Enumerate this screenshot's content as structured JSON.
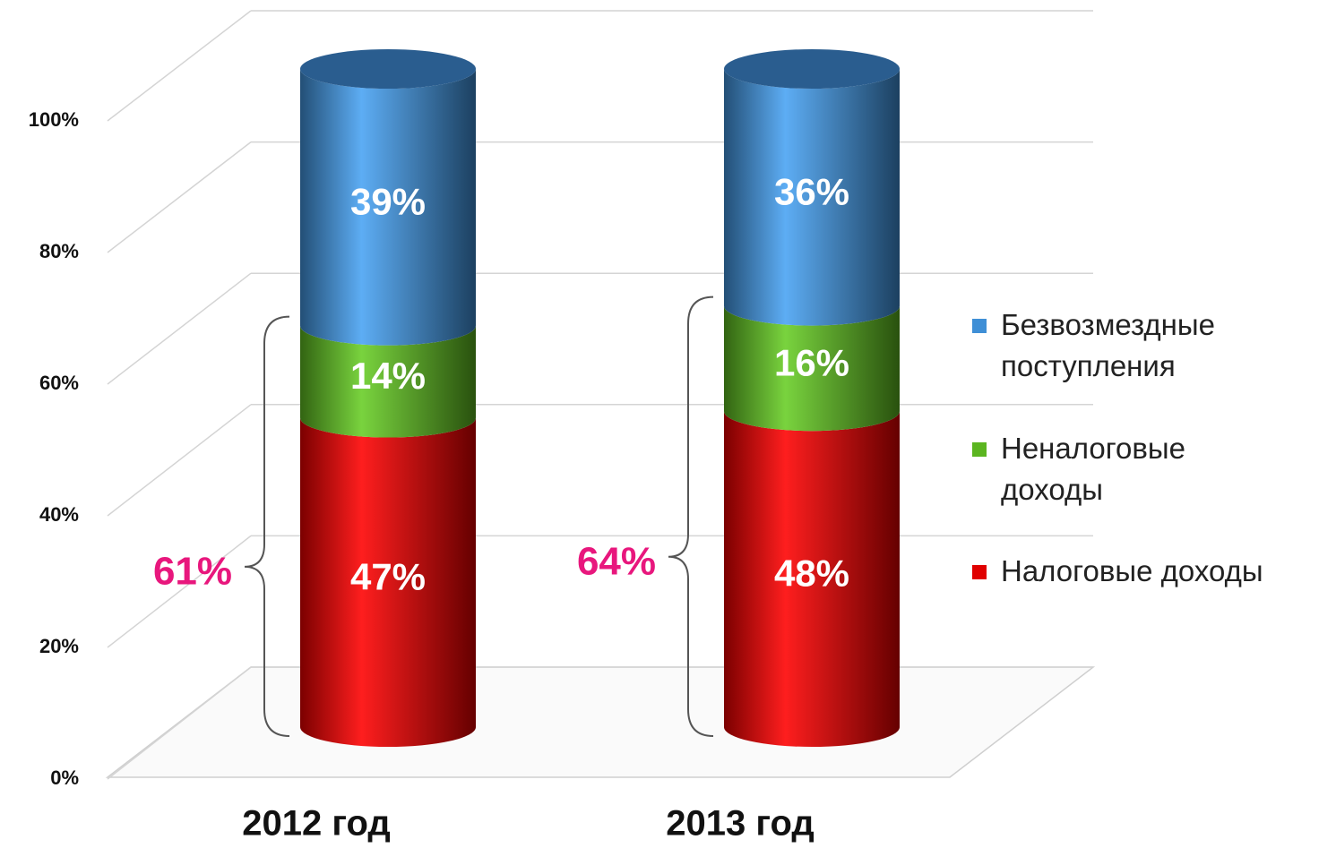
{
  "chart_data": {
    "type": "bar",
    "stacked": true,
    "categories": [
      "2012 год",
      "2013 год"
    ],
    "series": [
      {
        "name": "Налоговые доходы",
        "color": "#e00000",
        "values": [
          47,
          48
        ],
        "value_labels": [
          "47%",
          "48%"
        ]
      },
      {
        "name": "Неналоговые доходы",
        "color": "#5bb520",
        "values": [
          14,
          16
        ],
        "value_labels": [
          "14%",
          "16%"
        ]
      },
      {
        "name": "Безвозмездные поступления",
        "color": "#3f8fd6",
        "values": [
          39,
          36
        ],
        "value_labels": [
          "39%",
          "36%"
        ]
      }
    ],
    "ylim": [
      0,
      100
    ],
    "yticks": [
      {
        "value": 0,
        "label": "0%"
      },
      {
        "value": 20,
        "label": "20%"
      },
      {
        "value": 40,
        "label": "40%"
      },
      {
        "value": 60,
        "label": "60%"
      },
      {
        "value": 80,
        "label": "80%"
      },
      {
        "value": 100,
        "label": "100%"
      }
    ],
    "grid": true,
    "legend": "right",
    "annotations": [
      {
        "text": "61%"
      },
      {
        "text": "64%"
      }
    ]
  }
}
